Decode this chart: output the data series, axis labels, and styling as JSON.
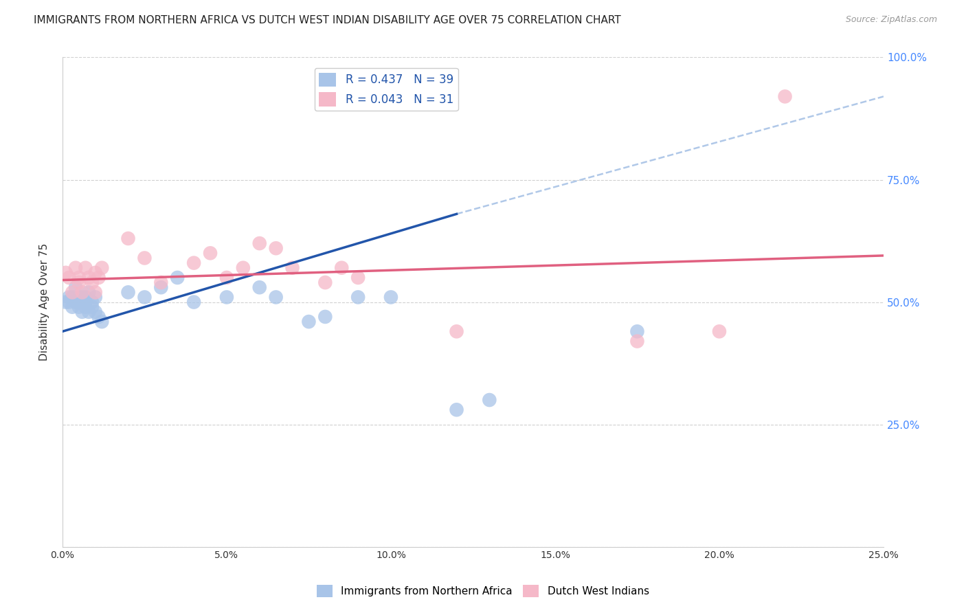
{
  "title": "IMMIGRANTS FROM NORTHERN AFRICA VS DUTCH WEST INDIAN DISABILITY AGE OVER 75 CORRELATION CHART",
  "source": "Source: ZipAtlas.com",
  "ylabel": "Disability Age Over 75",
  "legend_label_blue": "Immigrants from Northern Africa",
  "legend_label_pink": "Dutch West Indians",
  "R_blue": 0.437,
  "N_blue": 39,
  "R_pink": 0.043,
  "N_pink": 31,
  "xlim": [
    0.0,
    0.25
  ],
  "ylim": [
    0.0,
    1.0
  ],
  "xticks": [
    0.0,
    0.05,
    0.1,
    0.15,
    0.2,
    0.25
  ],
  "yticks": [
    0.0,
    0.25,
    0.5,
    0.75,
    1.0
  ],
  "xtick_labels": [
    "0.0%",
    "5.0%",
    "10.0%",
    "15.0%",
    "20.0%",
    "25.0%"
  ],
  "ytick_labels_right": [
    "",
    "25.0%",
    "50.0%",
    "75.0%",
    "100.0%"
  ],
  "color_blue": "#a8c4e8",
  "color_pink": "#f5b8c8",
  "line_color_blue": "#2255aa",
  "line_color_pink": "#e06080",
  "line_color_dash": "#b0c8e8",
  "background_color": "#ffffff",
  "title_fontsize": 11,
  "source_fontsize": 9,
  "blue_scatter_x": [
    0.001,
    0.002,
    0.002,
    0.003,
    0.003,
    0.004,
    0.004,
    0.005,
    0.005,
    0.005,
    0.006,
    0.006,
    0.006,
    0.007,
    0.007,
    0.007,
    0.008,
    0.008,
    0.009,
    0.009,
    0.01,
    0.01,
    0.011,
    0.012,
    0.02,
    0.025,
    0.03,
    0.035,
    0.04,
    0.05,
    0.06,
    0.065,
    0.075,
    0.08,
    0.09,
    0.1,
    0.12,
    0.13,
    0.175
  ],
  "blue_scatter_y": [
    0.5,
    0.51,
    0.5,
    0.51,
    0.49,
    0.5,
    0.53,
    0.5,
    0.51,
    0.49,
    0.48,
    0.51,
    0.5,
    0.49,
    0.51,
    0.5,
    0.52,
    0.48,
    0.5,
    0.49,
    0.51,
    0.48,
    0.47,
    0.46,
    0.52,
    0.51,
    0.53,
    0.55,
    0.5,
    0.51,
    0.53,
    0.51,
    0.46,
    0.47,
    0.51,
    0.51,
    0.28,
    0.3,
    0.44
  ],
  "pink_scatter_x": [
    0.001,
    0.002,
    0.003,
    0.004,
    0.005,
    0.005,
    0.006,
    0.007,
    0.008,
    0.009,
    0.01,
    0.01,
    0.011,
    0.012,
    0.02,
    0.025,
    0.03,
    0.04,
    0.045,
    0.05,
    0.055,
    0.06,
    0.065,
    0.07,
    0.08,
    0.085,
    0.09,
    0.12,
    0.175,
    0.2,
    0.22
  ],
  "pink_scatter_y": [
    0.56,
    0.55,
    0.52,
    0.57,
    0.55,
    0.54,
    0.52,
    0.57,
    0.55,
    0.54,
    0.56,
    0.52,
    0.55,
    0.57,
    0.63,
    0.59,
    0.54,
    0.58,
    0.6,
    0.55,
    0.57,
    0.62,
    0.61,
    0.57,
    0.54,
    0.57,
    0.55,
    0.44,
    0.42,
    0.44,
    0.92
  ],
  "blue_line_x": [
    0.0,
    0.12
  ],
  "blue_line_y": [
    0.44,
    0.68
  ],
  "dash_line_x": [
    0.12,
    0.25
  ],
  "dash_line_y": [
    0.68,
    0.92
  ],
  "pink_line_x": [
    0.0,
    0.25
  ],
  "pink_line_y": [
    0.545,
    0.595
  ]
}
